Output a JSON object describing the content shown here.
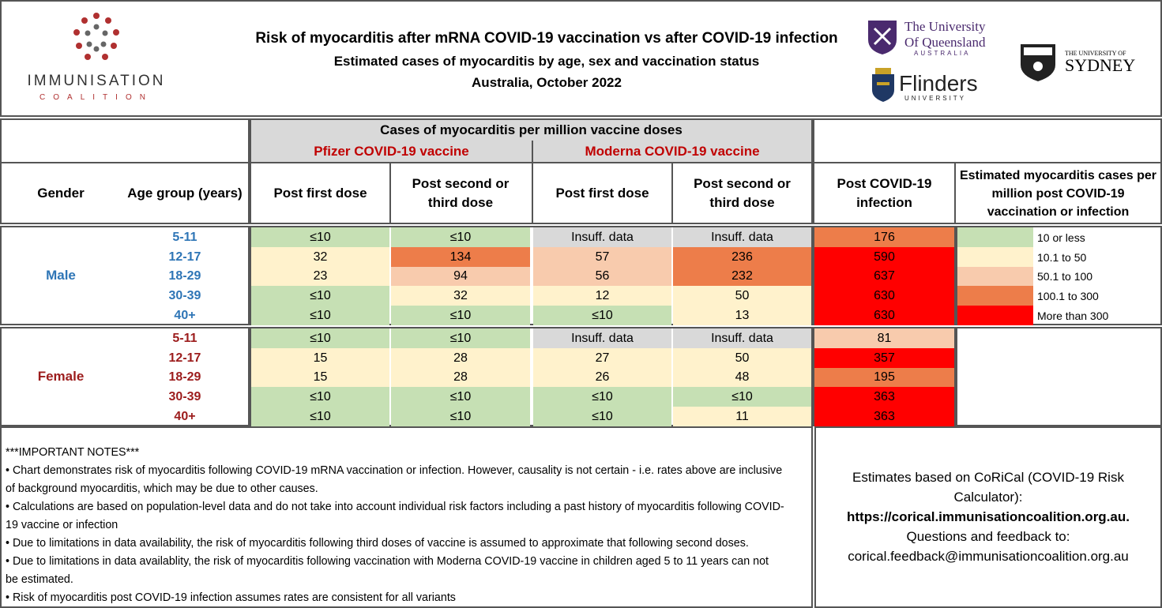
{
  "header": {
    "title": "Risk of myocarditis after mRNA COVID-19 vaccination vs after COVID-19 infection",
    "subtitle": "Estimated cases of myocarditis by age, sex and vaccination status",
    "date_line": "Australia, October 2022",
    "ic_name": "IMMUNISATION",
    "ic_sub": "COALITION",
    "uq_line1": "The University",
    "uq_line2": "Of Queensland",
    "uq_line3": "AUSTRALIA",
    "flinders_name": "Flinders",
    "flinders_sub": "UNIVERSITY",
    "sydney_small": "THE UNIVERSITY OF",
    "sydney_big": "SYDNEY"
  },
  "table": {
    "group_title": "Cases of myocarditis per million vaccine doses",
    "pfizer_title": "Pfizer COVID-19 vaccine",
    "moderna_title": "Moderna COVID-19 vaccine",
    "col_gender": "Gender",
    "col_age": "Age group (years)",
    "col_pf1": "Post first dose",
    "col_pf2": "Post second or third dose",
    "col_md1": "Post first dose",
    "col_md2": "Post second or third dose",
    "col_inf": "Post COVID-19 infection",
    "col_legend": "Estimated myocarditis cases per million post COVID-19 vaccination or infection",
    "male_label": "Male",
    "female_label": "Female",
    "male_rows": [
      {
        "age": "5-11",
        "pf1": "≤10",
        "pf2": "≤10",
        "md1": "Insuff. data",
        "md2": "Insuff. data",
        "inf": "176"
      },
      {
        "age": "12-17",
        "pf1": "32",
        "pf2": "134",
        "md1": "57",
        "md2": "236",
        "inf": "590"
      },
      {
        "age": "18-29",
        "pf1": "23",
        "pf2": "94",
        "md1": "56",
        "md2": "232",
        "inf": "637"
      },
      {
        "age": "30-39",
        "pf1": "≤10",
        "pf2": "32",
        "md1": "12",
        "md2": "50",
        "inf": "630"
      },
      {
        "age": "40+",
        "pf1": "≤10",
        "pf2": "≤10",
        "md1": "≤10",
        "md2": "13",
        "inf": "630"
      }
    ],
    "female_rows": [
      {
        "age": "5-11",
        "pf1": "≤10",
        "pf2": "≤10",
        "md1": "Insuff. data",
        "md2": "Insuff. data",
        "inf": "81"
      },
      {
        "age": "12-17",
        "pf1": "15",
        "pf2": "28",
        "md1": "27",
        "md2": "50",
        "inf": "357"
      },
      {
        "age": "18-29",
        "pf1": "15",
        "pf2": "28",
        "md1": "26",
        "md2": "48",
        "inf": "195"
      },
      {
        "age": "30-39",
        "pf1": "≤10",
        "pf2": "≤10",
        "md1": "≤10",
        "md2": "≤10",
        "inf": "363"
      },
      {
        "age": "40+",
        "pf1": "≤10",
        "pf2": "≤10",
        "md1": "≤10",
        "md2": "11",
        "inf": "363"
      }
    ],
    "legend": [
      {
        "label": "10 or less",
        "color": "#c6e0b4"
      },
      {
        "label": "10.1 to 50",
        "color": "#fff2cc"
      },
      {
        "label": "50.1 to 100",
        "color": "#f8cbad"
      },
      {
        "label": "100.1 to 300",
        "color": "#ed7d4a"
      },
      {
        "label": "More than 300",
        "color": "#ff0000"
      }
    ]
  },
  "notes": {
    "heading": "***IMPORTANT NOTES***",
    "n1a": "• Chart demonstrates risk of myocarditis following COVID-19 mRNA vaccination or infection.  However, causality is not certain - i.e. rates above are inclusive",
    "n1b": "of  background myocarditis, which may be due to other causes.",
    "n2a": "• Calculations are based on population-level data and do not take into account individual risk factors including a past history of myocarditis following COVID-",
    "n2b": "19 vaccine or infection",
    "n3": "• Due to limitations in data availability, the risk of myocarditis following third doses of vaccine is assumed to approximate that following second doses.",
    "n4a": "• Due to limitations in data availablity, the risk of myocarditis following vaccination with Moderna COVID-19 vaccine in children aged 5 to 11 years can not",
    "n4b": "be estimated.",
    "n5": "• Risk of myocarditis post COVID-19 infection assumes rates are consistent for all variants"
  },
  "source": {
    "line1": "Estimates based on CoRiCal (COVID-19 Risk",
    "line2": "Calculator):",
    "url": "https://corical.immunisationcoalition.org.au.",
    "line3": "Questions and feedback to:",
    "email": "corical.feedback@immunisationcoalition.org.au"
  }
}
